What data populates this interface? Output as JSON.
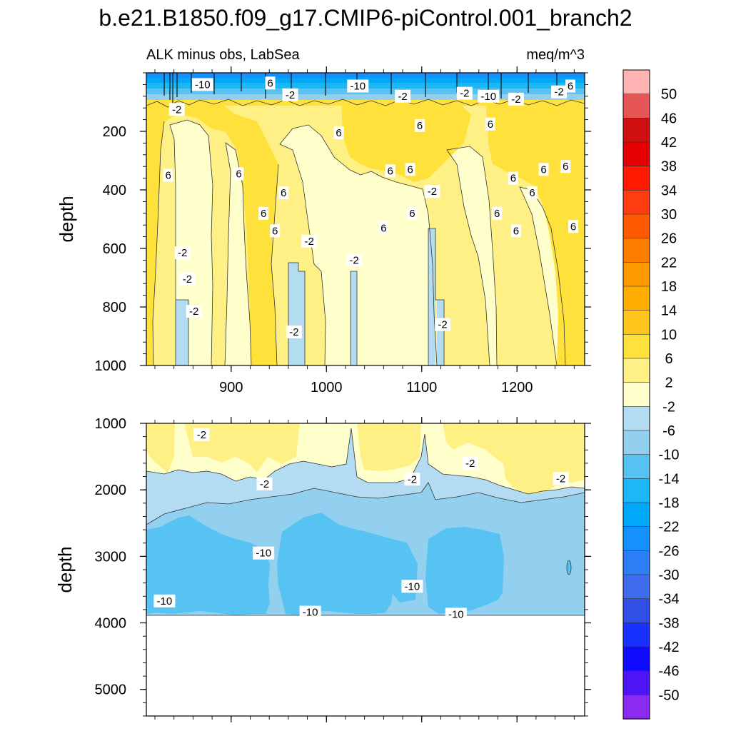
{
  "chart_data": {
    "type": "heatmap",
    "title": "b.e21.B1850.f09_g17.CMIP6-piControl.001_branch2",
    "subtitle_left": "ALK minus obs, LabSea",
    "subtitle_right": "meq/m^3",
    "xlim": [
      811,
      1271
    ],
    "x_ticks": [
      900,
      1000,
      1100,
      1200
    ],
    "ylabel": "depth",
    "panels": [
      {
        "name": "upper",
        "ylim": [
          0,
          1000
        ],
        "y_ticks": [
          200,
          400,
          600,
          800,
          1000
        ],
        "contour_labels": [
          {
            "text": "-10",
            "x": 870,
            "y": 40
          },
          {
            "text": "6",
            "x": 941,
            "y": 35
          },
          {
            "text": "-2",
            "x": 962,
            "y": 75
          },
          {
            "text": "-10",
            "x": 1033,
            "y": 45
          },
          {
            "text": "-2",
            "x": 1080,
            "y": 80
          },
          {
            "text": "-2",
            "x": 1145,
            "y": 70
          },
          {
            "text": "-10",
            "x": 1170,
            "y": 80
          },
          {
            "text": "-2",
            "x": 1199,
            "y": 90
          },
          {
            "text": "-2",
            "x": 1244,
            "y": 65
          },
          {
            "text": "6",
            "x": 1256,
            "y": 45
          },
          {
            "text": "-2",
            "x": 843,
            "y": 125
          },
          {
            "text": "6",
            "x": 1013,
            "y": 205
          },
          {
            "text": "6",
            "x": 1098,
            "y": 180
          },
          {
            "text": "6",
            "x": 1172,
            "y": 175
          },
          {
            "text": "6",
            "x": 1251,
            "y": 320
          },
          {
            "text": "6",
            "x": 1228,
            "y": 330
          },
          {
            "text": "6",
            "x": 1067,
            "y": 335
          },
          {
            "text": "6",
            "x": 1088,
            "y": 330
          },
          {
            "text": "6",
            "x": 834,
            "y": 350
          },
          {
            "text": "6",
            "x": 908,
            "y": 345
          },
          {
            "text": "6",
            "x": 1196,
            "y": 360
          },
          {
            "text": "6",
            "x": 955,
            "y": 410
          },
          {
            "text": "-2",
            "x": 1111,
            "y": 405
          },
          {
            "text": "6",
            "x": 1216,
            "y": 410
          },
          {
            "text": "6",
            "x": 934,
            "y": 480
          },
          {
            "text": "6",
            "x": 1090,
            "y": 480
          },
          {
            "text": "6",
            "x": 1179,
            "y": 480
          },
          {
            "text": "6",
            "x": 1060,
            "y": 530
          },
          {
            "text": "6",
            "x": 1199,
            "y": 540
          },
          {
            "text": "6",
            "x": 1259,
            "y": 525
          },
          {
            "text": "6",
            "x": 946,
            "y": 540
          },
          {
            "text": "-2",
            "x": 982,
            "y": 575
          },
          {
            "text": "-2",
            "x": 849,
            "y": 615
          },
          {
            "text": "-2",
            "x": 1029,
            "y": 640
          },
          {
            "text": "-2",
            "x": 854,
            "y": 705
          },
          {
            "text": "-2",
            "x": 861,
            "y": 815
          },
          {
            "text": "-2",
            "x": 1122,
            "y": 860
          },
          {
            "text": "-2",
            "x": 966,
            "y": 885
          }
        ]
      },
      {
        "name": "lower",
        "ylim": [
          1000,
          5400
        ],
        "y_ticks": [
          1000,
          2000,
          3000,
          4000,
          5000
        ],
        "contour_labels": [
          {
            "text": "-2",
            "x": 869,
            "y": 1170
          },
          {
            "text": "-2",
            "x": 935,
            "y": 1910
          },
          {
            "text": "-2",
            "x": 1090,
            "y": 1840
          },
          {
            "text": "-2",
            "x": 1151,
            "y": 1600
          },
          {
            "text": "-2",
            "x": 1246,
            "y": 1830
          },
          {
            "text": "-10",
            "x": 934,
            "y": 2950
          },
          {
            "text": "-10",
            "x": 1090,
            "y": 3450
          },
          {
            "text": "-10",
            "x": 830,
            "y": 3670
          },
          {
            "text": "-10",
            "x": 983,
            "y": 3840
          },
          {
            "text": "-10",
            "x": 1136,
            "y": 3870
          }
        ]
      }
    ],
    "colorbar": {
      "levels": [
        "50",
        "46",
        "42",
        "38",
        "34",
        "30",
        "26",
        "22",
        "18",
        "14",
        "10",
        "6",
        "2",
        "-2",
        "-6",
        "-10",
        "-14",
        "-18",
        "-22",
        "-26",
        "-30",
        "-34",
        "-38",
        "-42",
        "-46",
        "-50"
      ],
      "colors": [
        "#ffb2b2",
        "#e65656",
        "#d01010",
        "#e40000",
        "#ff1a00",
        "#ff3b12",
        "#ff5a00",
        "#ff7e00",
        "#ff9b00",
        "#ffad00",
        "#ffc51a",
        "#ffe13c",
        "#fff086",
        "#ffffcc",
        "#b3dcf2",
        "#93cfee",
        "#57c3f3",
        "#1cb7f6",
        "#00a8fa",
        "#1591ff",
        "#2c7ef4",
        "#3f6cec",
        "#3050e4",
        "#1931ff",
        "#0f0bff",
        "#4d14f5",
        "#8b2af0"
      ]
    }
  }
}
